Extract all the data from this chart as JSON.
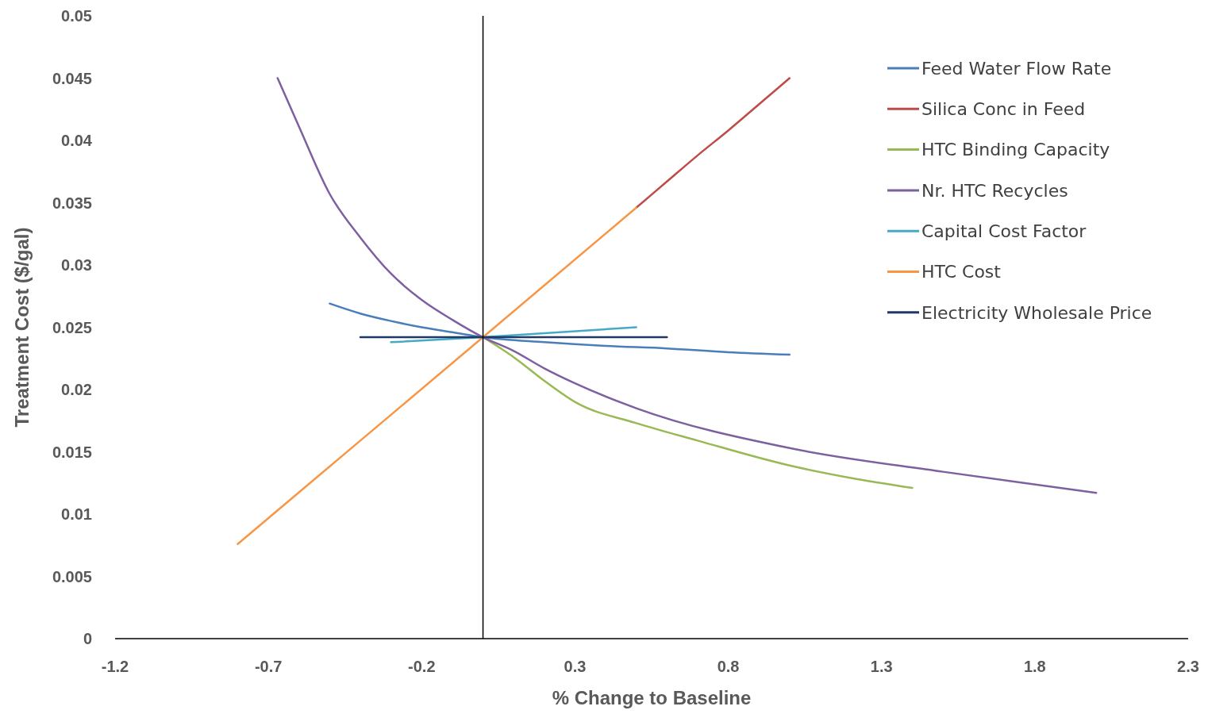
{
  "chart_data": {
    "type": "line",
    "xlabel": "% Change to Baseline",
    "ylabel": "Treatment Cost ($/gal)",
    "xlim": [
      -1.2,
      2.3
    ],
    "xticks": [
      -1.2,
      -0.7,
      -0.2,
      0.3,
      0.8,
      1.3,
      1.8,
      2.3
    ],
    "ylim": [
      0,
      0.05
    ],
    "yticks": [
      0,
      0.005,
      0.01,
      0.015,
      0.02,
      0.025,
      0.03,
      0.035,
      0.04,
      0.045,
      0.05
    ],
    "grid": false,
    "legend": "top right",
    "marker": "none",
    "line_style": "solid",
    "series": [
      {
        "name": "Feed Water Flow Rate",
        "color": "#4a7ebb",
        "x": [
          -0.5,
          -0.4,
          -0.3,
          -0.2,
          -0.1,
          0,
          0.2,
          0.4,
          0.6,
          0.8,
          1.0
        ],
        "values": [
          0.0269,
          0.0261,
          0.0255,
          0.025,
          0.0246,
          0.0242,
          0.0238,
          0.0235,
          0.0233,
          0.023,
          0.0228
        ]
      },
      {
        "name": "Silica Conc in Feed",
        "color": "#be4b48",
        "x": [
          0.5,
          0.6,
          0.7,
          0.8,
          0.9,
          1.0
        ],
        "values": [
          0.0346,
          0.0367,
          0.0388,
          0.0408,
          0.0429,
          0.045
        ]
      },
      {
        "name": "HTC Binding Capacity",
        "color": "#98b954",
        "x": [
          0,
          0.1,
          0.2,
          0.3,
          0.5,
          0.7,
          1.0,
          1.2,
          1.4
        ],
        "values": [
          0.0242,
          0.0226,
          0.0207,
          0.019,
          0.0173,
          0.0159,
          0.0139,
          0.0129,
          0.0121
        ]
      },
      {
        "name": "Nr. HTC Recycles",
        "color": "#7d60a0",
        "x": [
          -0.67,
          -0.6,
          -0.5,
          -0.4,
          -0.3,
          -0.2,
          -0.1,
          0,
          0.1,
          0.2,
          0.3,
          0.5,
          1.0,
          1.5,
          2.0
        ],
        "values": [
          0.045,
          0.0411,
          0.0357,
          0.0322,
          0.0293,
          0.0272,
          0.0256,
          0.0242,
          0.0231,
          0.0217,
          0.0205,
          0.0185,
          0.0153,
          0.0134,
          0.0117
        ]
      },
      {
        "name": "Capital Cost Factor",
        "color": "#46aac5",
        "x": [
          -0.3,
          0,
          0.5
        ],
        "values": [
          0.0238,
          0.0242,
          0.025
        ]
      },
      {
        "name": "HTC Cost",
        "color": "#f79646",
        "x": [
          -0.8,
          -0.4,
          0,
          0.5
        ],
        "values": [
          0.0076,
          0.0159,
          0.0242,
          0.0346
        ]
      },
      {
        "name": "Electricity Wholesale  Price",
        "color": "#1f3864",
        "x": [
          -0.4,
          0,
          0.6
        ],
        "values": [
          0.0242,
          0.0242,
          0.0242
        ]
      }
    ]
  }
}
